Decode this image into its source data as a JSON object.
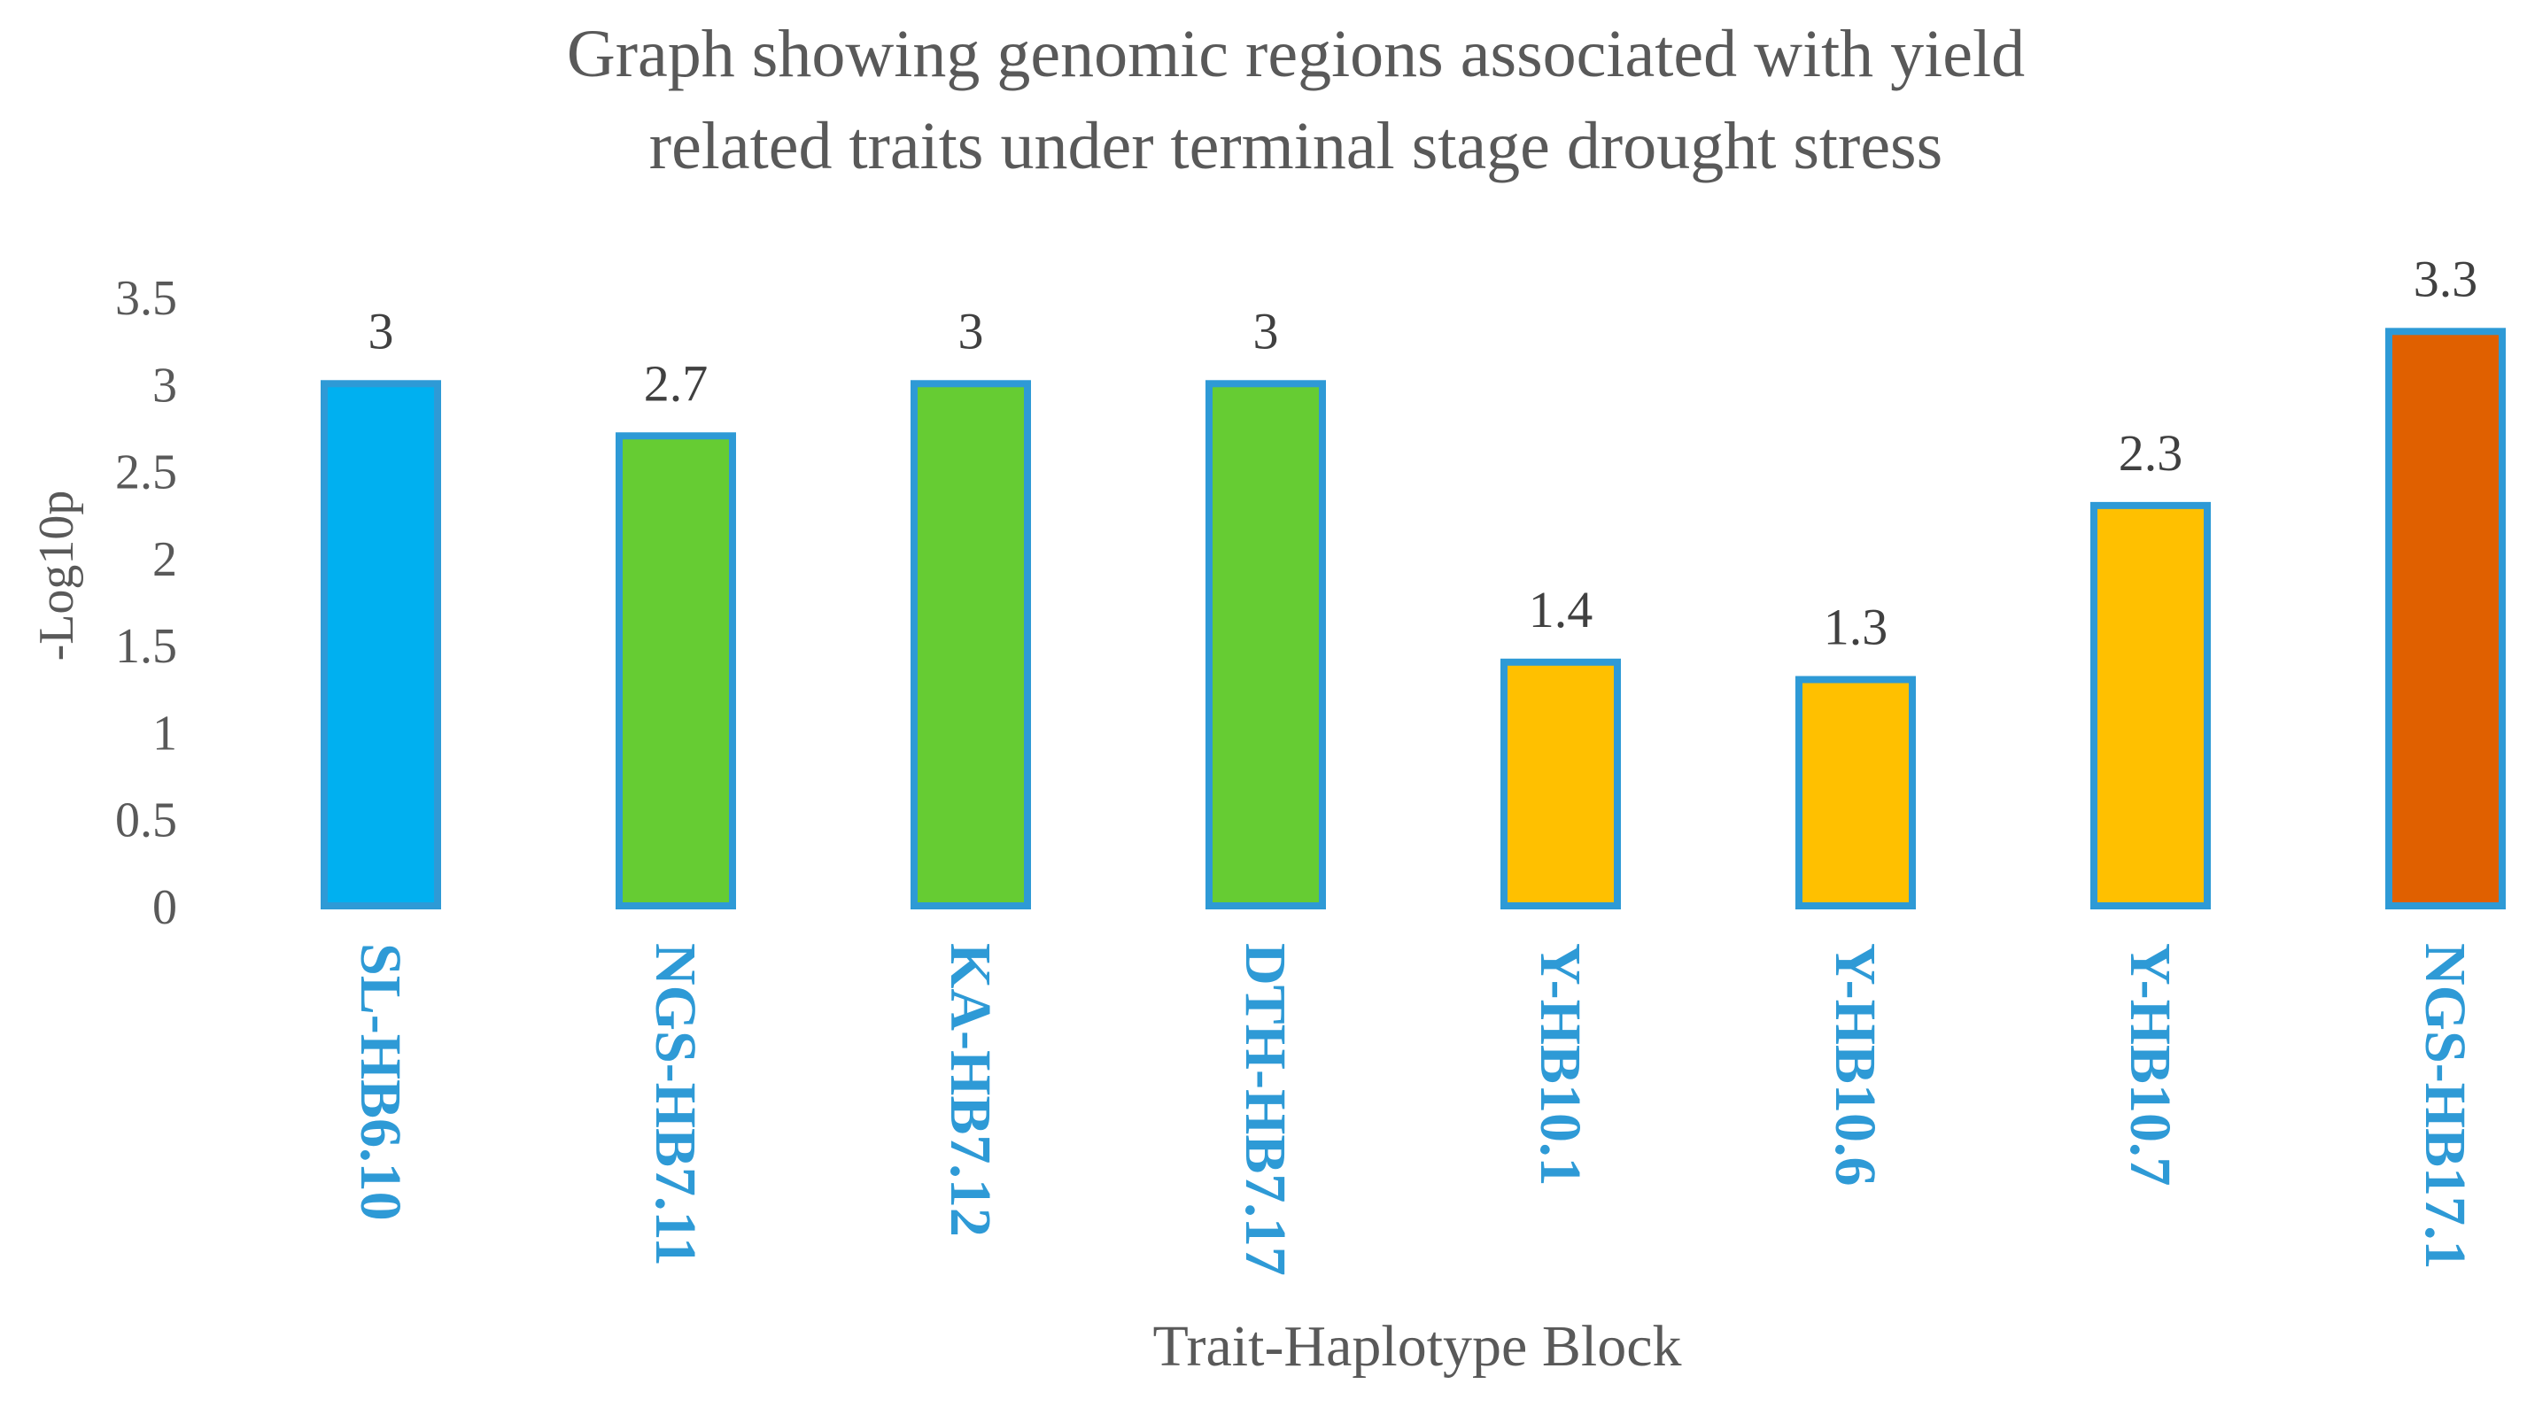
{
  "chart_data": {
    "type": "bar",
    "title_lines": [
      "Graph showing genomic regions associated with yield",
      "related traits under terminal stage drought stress"
    ],
    "xlabel": "Trait-Haplotype Block",
    "ylabel": "-Log10p",
    "ylim": [
      0,
      3.5
    ],
    "yticks": [
      "0",
      "0.5",
      "1",
      "1.5",
      "2",
      "2.5",
      "3",
      "3.5"
    ],
    "grid": false,
    "legend": "none",
    "categories": [
      "SL-HB6.10",
      "NGS-HB7.11",
      "KA-HB7.12",
      "DTH-HB7.17",
      "Y-HB10.1",
      "Y-HB10.6",
      "Y-HB10.7",
      "NGS-HB17.1"
    ],
    "values": [
      3,
      2.7,
      3,
      3,
      1.4,
      1.3,
      2.3,
      3.3
    ],
    "data_labels": [
      "3",
      "2.7",
      "3",
      "3",
      "1.4",
      "1.3",
      "2.3",
      "3.3"
    ],
    "bar_colors": [
      "#00B0F0",
      "#66CC33",
      "#66CC33",
      "#66CC33",
      "#FFC000",
      "#FFC000",
      "#FFC000",
      "#E06000"
    ],
    "bar_border_color": "#2E9AD6"
  }
}
